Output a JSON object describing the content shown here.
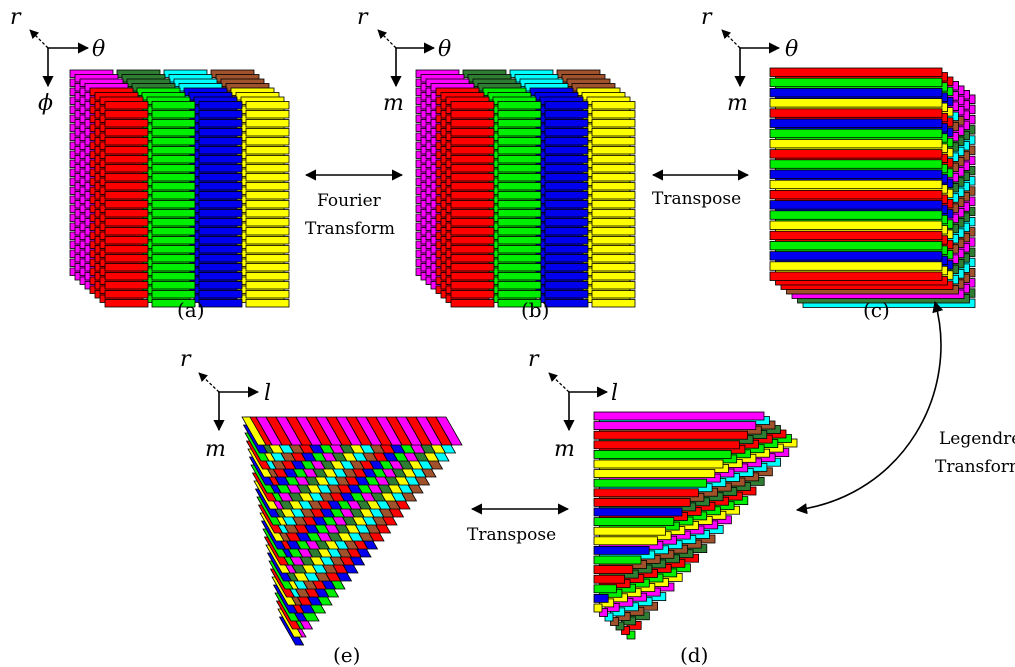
{
  "colors": {
    "magenta": "#ff00ff",
    "darkgreen": "#2e7d32",
    "cyan": "#00ffff",
    "brown": "#a0522d",
    "red": "#ff0000",
    "green": "#00ee00",
    "blue": "#0000ee",
    "yellow": "#ffff00",
    "stroke": "#000000"
  },
  "panels": {
    "a": {
      "label": "(a)",
      "axis_up": "r",
      "axis_right": "θ",
      "axis_down": "ϕ"
    },
    "b": {
      "label": "(b)",
      "axis_up": "r",
      "axis_right": "θ",
      "axis_down": "m"
    },
    "c": {
      "label": "(c)",
      "axis_up": "r",
      "axis_right": "θ",
      "axis_down": "m"
    },
    "d": {
      "label": "(d)",
      "axis_up": "r",
      "axis_right": "l",
      "axis_down": "m"
    },
    "e": {
      "label": "(e)",
      "axis_up": "r",
      "axis_right": "l",
      "axis_down": "m"
    }
  },
  "operations": {
    "fourier_line1": "Fourier",
    "fourier_line2": "Transform",
    "transpose_top": "Transpose",
    "legendre_line1": "Legendre",
    "legendre_line2": "Transform",
    "transpose_bottom": "Transpose"
  }
}
